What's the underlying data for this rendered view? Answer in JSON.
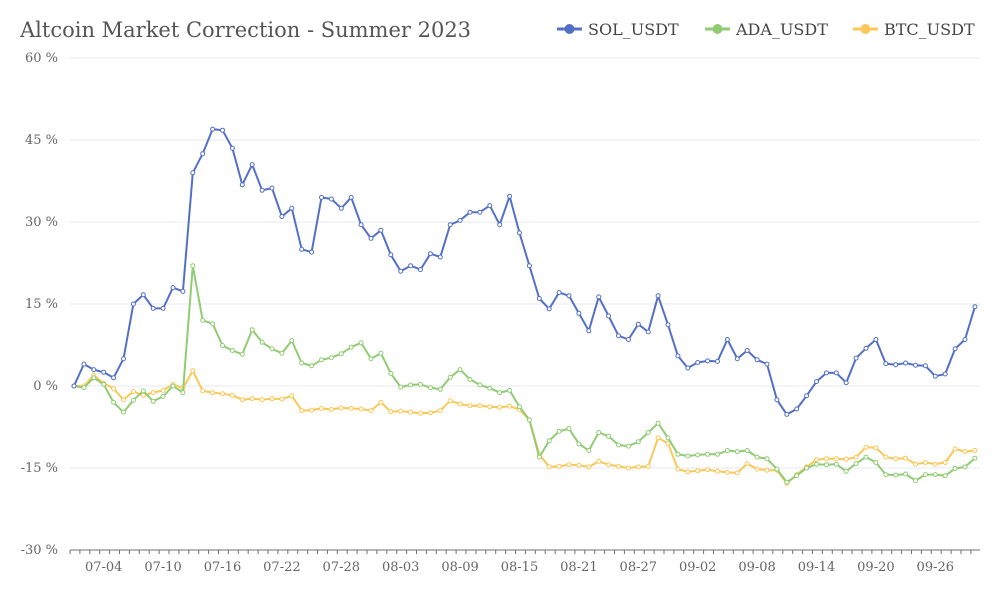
{
  "chart_data": {
    "type": "line",
    "title": "Altcoin Market Correction - Summer 2023",
    "xlabel": "",
    "ylabel": "",
    "ylim": [
      -30,
      60
    ],
    "yticks": [
      -30,
      -15,
      0,
      15,
      30,
      45,
      60
    ],
    "ytick_suffix": " %",
    "x_start": "07-01",
    "xticks": [
      "07-04",
      "07-10",
      "07-16",
      "07-22",
      "07-28",
      "08-03",
      "08-09",
      "08-15",
      "08-21",
      "08-27",
      "09-02",
      "09-08",
      "09-14",
      "09-20",
      "09-26"
    ],
    "grid": "horizontal",
    "legend": "top-right",
    "series": [
      {
        "name": "SOL_USDT",
        "color": "#5470c6",
        "values": [
          0,
          4,
          3,
          2.5,
          1.5,
          5,
          15,
          16.7,
          14.2,
          14.2,
          18,
          17.3,
          39,
          42.5,
          47,
          46.8,
          43.5,
          36.8,
          40.5,
          35.8,
          36.2,
          31,
          32.5,
          25,
          24.5,
          34.5,
          34.2,
          32.5,
          34.5,
          29.5,
          27,
          28.5,
          24,
          21,
          22,
          21.3,
          24.2,
          23.6,
          29.5,
          30.3,
          31.8,
          31.8,
          33,
          29.5,
          34.7,
          28,
          22,
          16,
          14.1,
          17.1,
          16.5,
          13.3,
          10.1,
          16.3,
          12.8,
          9.2,
          8.5,
          11.3,
          9.9,
          16.5,
          11.2,
          5.5,
          3.3,
          4.3,
          4.6,
          4.5,
          8.5,
          5,
          6.5,
          4.8,
          4.0,
          -2.5,
          -5.2,
          -4.2,
          -1.8,
          0.8,
          2.4,
          2.4,
          0.6,
          5.1,
          6.9,
          8.5,
          4.1,
          3.9,
          4.2,
          3.8,
          3.7,
          1.8,
          2.2,
          6.8,
          8.5,
          14.5
        ]
      },
      {
        "name": "ADA_USDT",
        "color": "#91cc75",
        "values": [
          0,
          -0.3,
          1.5,
          0.3,
          -3,
          -4.8,
          -2.6,
          -0.9,
          -2.8,
          -1.9,
          0,
          -1.2,
          22,
          12,
          11.4,
          7.4,
          6.5,
          5.8,
          10.3,
          8,
          6.8,
          6,
          8.3,
          4.2,
          3.7,
          4.8,
          5.2,
          5.9,
          7.1,
          7.9,
          5,
          6,
          2.3,
          -0.2,
          0.2,
          0.3,
          -0.3,
          -0.6,
          1.6,
          3,
          1.2,
          0.2,
          -0.4,
          -1.2,
          -0.8,
          -3.8,
          -6.2,
          -13,
          -10,
          -8.3,
          -7.8,
          -10.6,
          -11.8,
          -8.5,
          -9.2,
          -10.8,
          -11,
          -10.2,
          -8.5,
          -6.8,
          -9.5,
          -12.5,
          -12.8,
          -12.6,
          -12.5,
          -12.5,
          -11.8,
          -12,
          -11.8,
          -13,
          -13.3,
          -15.2,
          -17.6,
          -16.4,
          -15,
          -14.3,
          -14.4,
          -14.3,
          -15.6,
          -14.2,
          -13,
          -14,
          -16.2,
          -16.3,
          -16.1,
          -17.3,
          -16.2,
          -16.2,
          -16.4,
          -15.1,
          -14.8,
          -13.2
        ]
      },
      {
        "name": "BTC_USDT",
        "color": "#fac858",
        "values": [
          0,
          0,
          2,
          0.5,
          -0.5,
          -2.5,
          -1,
          -1.7,
          -1.2,
          -0.8,
          0.3,
          -0.4,
          2.8,
          -0.9,
          -1.2,
          -1.4,
          -1.7,
          -2.5,
          -2.3,
          -2.5,
          -2.3,
          -2.4,
          -1.8,
          -4.5,
          -4.4,
          -4.1,
          -4.3,
          -4,
          -4.1,
          -4.2,
          -4.5,
          -3,
          -4.7,
          -4.6,
          -4.8,
          -5,
          -4.9,
          -4.5,
          -2.7,
          -3.3,
          -3.6,
          -3.6,
          -3.8,
          -3.9,
          -3.7,
          -4.3,
          -6.2,
          -12.5,
          -14.8,
          -14.7,
          -14.4,
          -14.5,
          -14.8,
          -13.8,
          -14.4,
          -14.7,
          -15,
          -14.8,
          -14.7,
          -9.5,
          -10.5,
          -15.2,
          -15.7,
          -15.5,
          -15.3,
          -15.6,
          -15.8,
          -15.9,
          -14.2,
          -15.2,
          -15.4,
          -15.4,
          -17.8,
          -16.2,
          -14.8,
          -13.5,
          -13.3,
          -13.3,
          -13.4,
          -13,
          -11.2,
          -11.3,
          -13,
          -13.3,
          -13.2,
          -14.3,
          -14,
          -14.3,
          -14,
          -11.5,
          -12,
          -11.8
        ]
      }
    ]
  }
}
